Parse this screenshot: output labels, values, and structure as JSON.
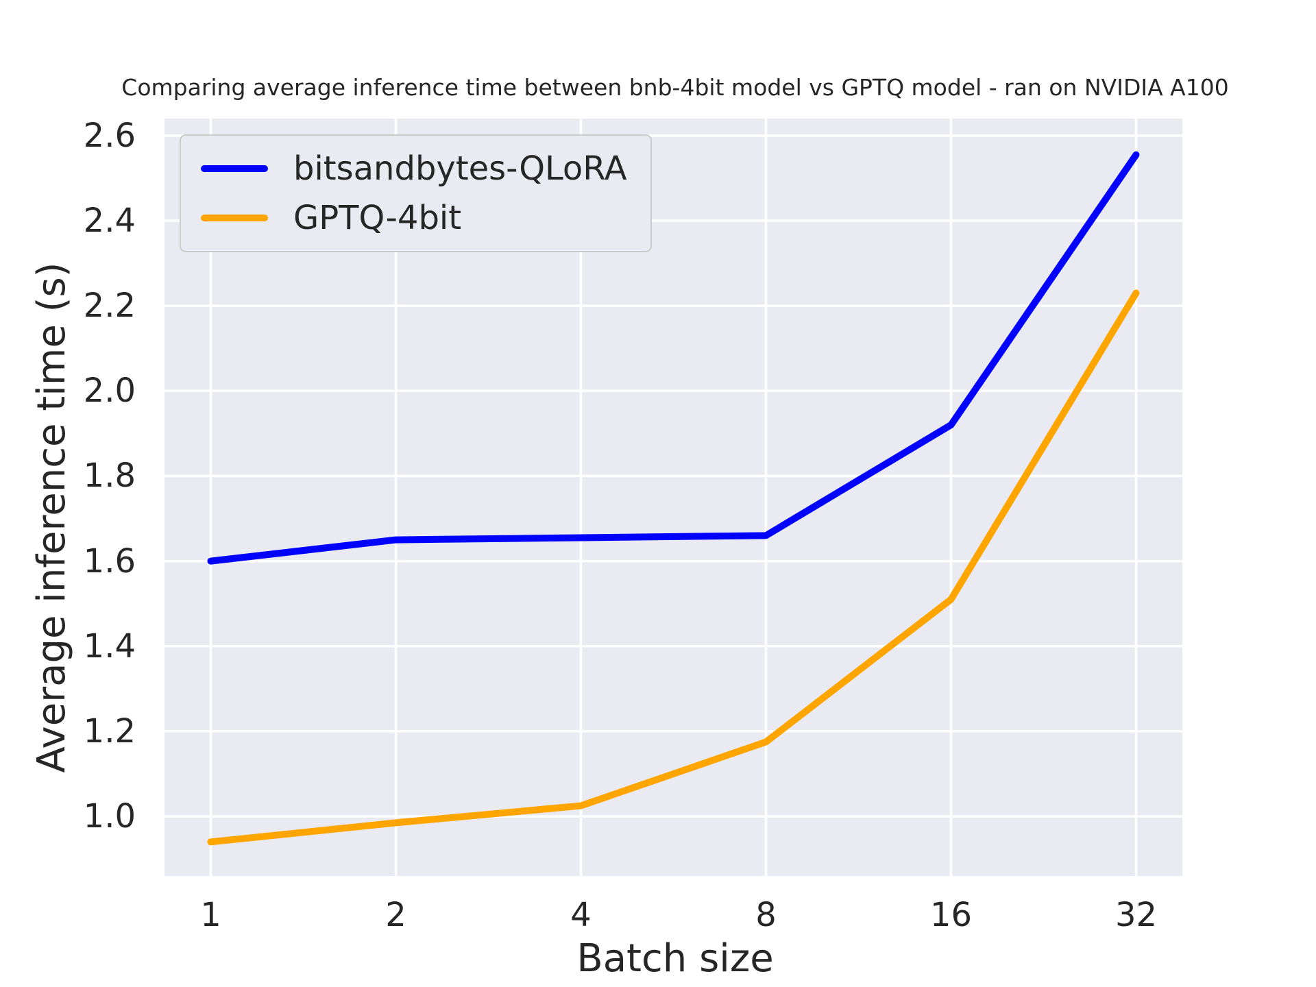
{
  "chart_data": {
    "type": "line",
    "title": "Comparing average inference time between bnb-4bit model vs GPTQ model - ran on NVIDIA A100",
    "xlabel": "Batch size",
    "ylabel": "Average inference time (s)",
    "categories": [
      "1",
      "2",
      "4",
      "8",
      "16",
      "32"
    ],
    "series": [
      {
        "name": "bitsandbytes-QLoRA",
        "color": "#0000ff",
        "values": [
          1.6,
          1.65,
          1.655,
          1.66,
          1.92,
          2.555
        ]
      },
      {
        "name": "GPTQ-4bit",
        "color": "#ffa500",
        "values": [
          0.94,
          0.985,
          1.025,
          1.175,
          1.51,
          2.23
        ]
      }
    ],
    "x_tick_labels": [
      "1",
      "2",
      "4",
      "8",
      "16",
      "32"
    ],
    "y_ticks": [
      1.0,
      1.2,
      1.4,
      1.6,
      1.8,
      2.0,
      2.2,
      2.4,
      2.6
    ],
    "y_tick_labels": [
      "1.0",
      "1.2",
      "1.4",
      "1.6",
      "1.8",
      "2.0",
      "2.2",
      "2.4",
      "2.6"
    ],
    "ylim": [
      0.86,
      2.64
    ],
    "grid": true,
    "legend_position": "upper left",
    "styles": {
      "plot_bg": "#eaeaf2",
      "grid_color": "#ffffff",
      "text_color": "#262626",
      "legend_border": "#cccccc",
      "line_width": 10
    }
  }
}
